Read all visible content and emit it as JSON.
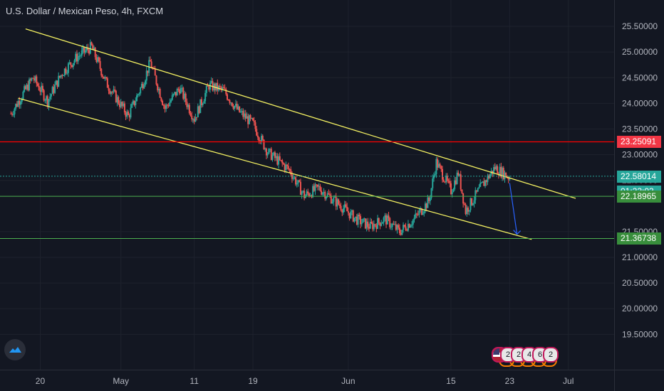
{
  "title": "U.S. Dollar / Mexican Peso, 4h, FXCM",
  "price_labels": [
    {
      "text": "23.25091",
      "color": "#f23645"
    },
    {
      "text": "22.58014",
      "color": "#26a69a"
    },
    {
      "text": "01:22:03",
      "color": "#26a69a"
    },
    {
      "text": "22.18965",
      "color": "#388e3c"
    },
    {
      "text": "21.36738",
      "color": "#388e3c"
    }
  ],
  "badges": [
    "2",
    "2",
    "4",
    "6",
    "2"
  ],
  "icons": {
    "logo": "tradingview-cloud-icon",
    "flag": "us-flag-icon"
  },
  "colors": {
    "background": "#131722",
    "up": "#26a69a",
    "down": "#ef5350",
    "channel": "#f4f162",
    "resistance": "#ff0000",
    "support": "#4caf50",
    "arrow": "#2962ff"
  },
  "chart_data": {
    "type": "candlestick",
    "title": "U.S. Dollar / Mexican Peso, 4h, FXCM",
    "x_ticks": [
      "20",
      "May",
      "11",
      "19",
      "Jun",
      "15",
      "23",
      "Jul"
    ],
    "y_ticks": [
      "25.50000",
      "25.00000",
      "24.50000",
      "24.00000",
      "23.50000",
      "23.00000",
      "22.50000",
      "21.50000",
      "21.00000",
      "20.50000",
      "20.00000",
      "19.50000"
    ],
    "ylim": [
      19.2,
      25.75
    ],
    "x_range": [
      "2020-04-15",
      "2020-07-02"
    ],
    "price_path": [
      [
        "2020-04-16",
        23.8
      ],
      [
        "2020-04-19",
        24.5
      ],
      [
        "2020-04-21",
        24.05
      ],
      [
        "2020-04-23",
        24.6
      ],
      [
        "2020-04-25",
        24.9
      ],
      [
        "2020-04-27",
        25.1
      ],
      [
        "2020-04-29",
        24.4
      ],
      [
        "2020-05-02",
        23.75
      ],
      [
        "2020-05-04",
        24.4
      ],
      [
        "2020-05-05",
        24.8
      ],
      [
        "2020-05-07",
        23.9
      ],
      [
        "2020-05-09",
        24.3
      ],
      [
        "2020-05-11",
        23.7
      ],
      [
        "2020-05-13",
        24.35
      ],
      [
        "2020-05-15",
        24.25
      ],
      [
        "2020-05-17",
        23.85
      ],
      [
        "2020-05-19",
        23.6
      ],
      [
        "2020-05-21",
        23.05
      ],
      [
        "2020-05-24",
        22.7
      ],
      [
        "2020-05-26",
        22.2
      ],
      [
        "2020-05-28",
        22.35
      ],
      [
        "2020-05-31",
        22.0
      ],
      [
        "2020-06-02",
        21.75
      ],
      [
        "2020-06-04",
        21.6
      ],
      [
        "2020-06-06",
        21.75
      ],
      [
        "2020-06-08",
        21.5
      ],
      [
        "2020-06-10",
        21.75
      ],
      [
        "2020-06-12",
        22.1
      ],
      [
        "2020-06-13",
        22.85
      ],
      [
        "2020-06-15",
        22.3
      ],
      [
        "2020-06-16",
        22.65
      ],
      [
        "2020-06-17",
        21.9
      ],
      [
        "2020-06-19",
        22.35
      ],
      [
        "2020-06-21",
        22.75
      ],
      [
        "2020-06-23",
        22.55
      ]
    ],
    "lines": [
      {
        "name": "",
        "type": "trendline",
        "from": [
          "2020-04-18",
          25.45
        ],
        "to": [
          "2020-07-02",
          22.15
        ]
      },
      {
        "name": "",
        "type": "trendline",
        "from": [
          "2020-04-17",
          24.1
        ],
        "to": [
          "2020-06-26",
          21.35
        ]
      },
      {
        "name": "",
        "type": "horizontal",
        "value": 23.25091
      },
      {
        "name": "",
        "type": "horizontal",
        "value": 22.18965
      },
      {
        "name": "",
        "type": "horizontal",
        "value": 21.36738
      },
      {
        "name": "",
        "type": "horizontal-dotted",
        "value": 22.58014
      }
    ],
    "arrow": {
      "from": [
        "2020-06-23",
        22.45
      ],
      "to": [
        "2020-06-24",
        21.45
      ]
    },
    "grid": true,
    "legend": "none"
  }
}
